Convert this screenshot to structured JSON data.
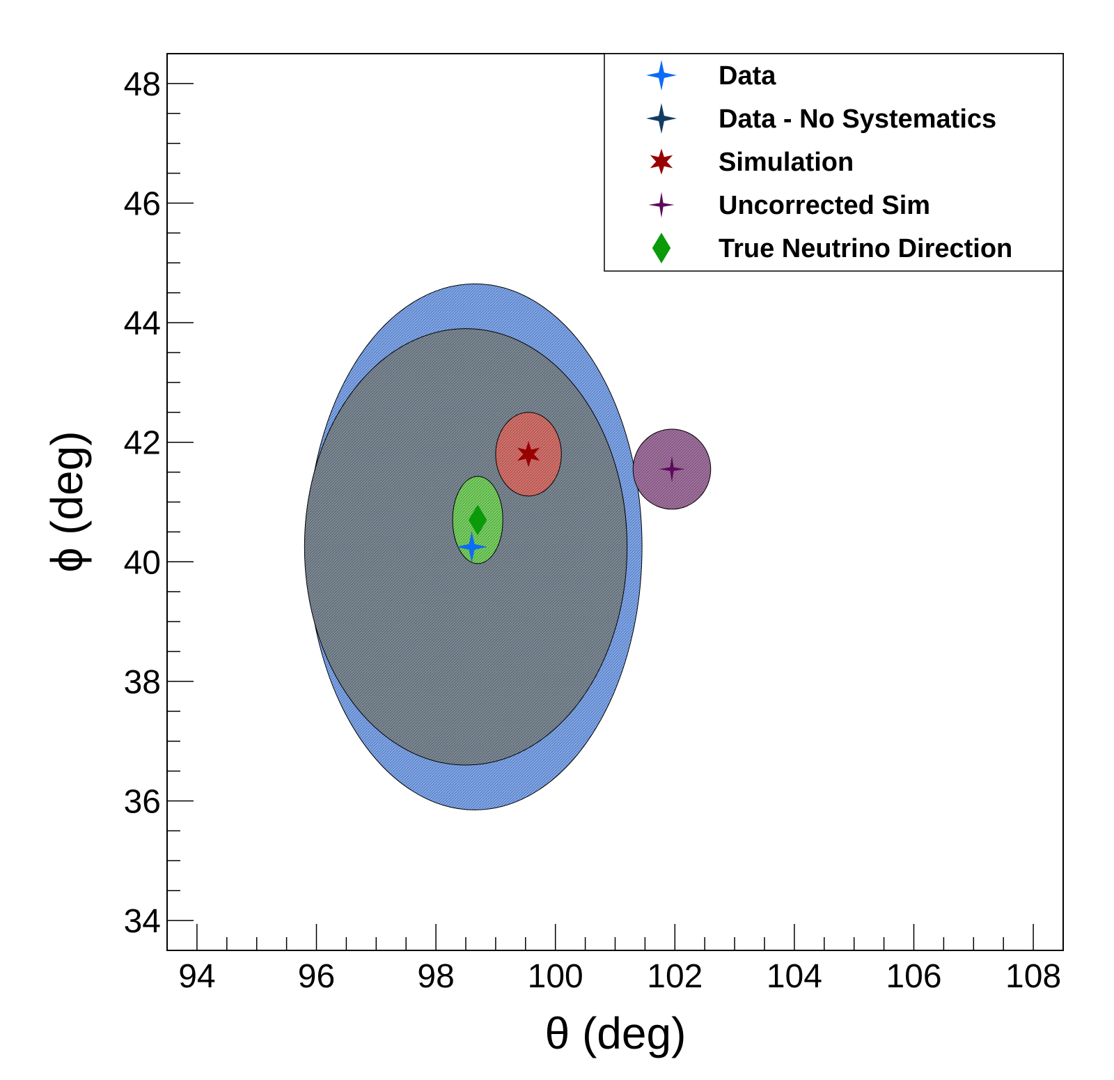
{
  "chart_data": {
    "type": "scatter",
    "xlabel": "θ (deg)",
    "ylabel": "ϕ (deg)",
    "xlim": [
      93.5,
      108.5
    ],
    "ylim": [
      33.5,
      48.5
    ],
    "x_ticks": [
      "94",
      "96",
      "98",
      "100",
      "102",
      "104",
      "106",
      "108"
    ],
    "y_ticks": [
      "34",
      "36",
      "38",
      "40",
      "42",
      "44",
      "46",
      "48"
    ],
    "grid": false,
    "legend_placement": "top-right",
    "ellipses": [
      {
        "series": "Data",
        "cx": 98.65,
        "cy": 40.25,
        "rx": 2.8,
        "ry": 4.4,
        "fill": "#7fa8ef"
      },
      {
        "series": "Data - No Systematics",
        "cx": 98.5,
        "cy": 40.25,
        "rx": 2.7,
        "ry": 3.65,
        "fill": "#7d8a96"
      },
      {
        "series": "Simulation",
        "cx": 99.55,
        "cy": 41.8,
        "rx": 0.55,
        "ry": 0.7,
        "fill": "#d9726c"
      },
      {
        "series": "Uncorrected Sim",
        "cx": 101.95,
        "cy": 41.55,
        "rx": 0.65,
        "ry": 0.67,
        "fill": "#a371a0"
      },
      {
        "series": "True Neutrino Direction",
        "cx": 98.7,
        "cy": 40.7,
        "rx": 0.42,
        "ry": 0.73,
        "fill": "#78d461"
      }
    ],
    "series": [
      {
        "name": "Data",
        "marker": "star4",
        "color": "#0b6cf8",
        "x": 98.6,
        "y": 40.25
      },
      {
        "name": "Data - No Systematics",
        "marker": "star4",
        "color": "#133c63",
        "x": 98.6,
        "y": 40.25
      },
      {
        "name": "Simulation",
        "marker": "star6",
        "color": "#990000",
        "x": 99.55,
        "y": 41.8
      },
      {
        "name": "Uncorrected Sim",
        "marker": "star4-thin",
        "color": "#5c0a5c",
        "x": 101.95,
        "y": 41.55
      },
      {
        "name": "True Neutrino Direction",
        "marker": "diamond",
        "color": "#0a9a0a",
        "x": 98.7,
        "y": 40.7
      }
    ]
  }
}
